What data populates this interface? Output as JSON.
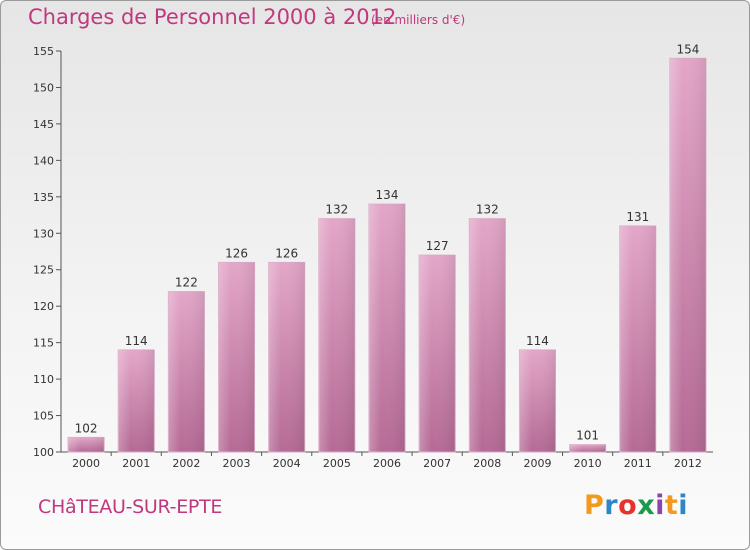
{
  "header": {
    "title": "Charges de Personnel 2000 à 2012",
    "subtitle": "(en milliers d'€)"
  },
  "footer": {
    "town": "CHâTEAU-SUR-EPTE",
    "brand": {
      "letters": [
        "P",
        "r",
        "o",
        "x",
        "i",
        "t",
        "i"
      ],
      "colors": [
        "#f39a1e",
        "#2e86c8",
        "#e6332a",
        "#1a9a4b",
        "#8e44ad",
        "#f39a1e",
        "#2e86c8"
      ]
    }
  },
  "chart_data": {
    "type": "bar",
    "title": "Charges de Personnel 2000 à 2012",
    "subtitle": "(en milliers d'€)",
    "categories": [
      "2000",
      "2001",
      "2002",
      "2003",
      "2004",
      "2005",
      "2006",
      "2007",
      "2008",
      "2009",
      "2010",
      "2011",
      "2012"
    ],
    "values": [
      102,
      114,
      122,
      126,
      126,
      132,
      134,
      127,
      132,
      114,
      101,
      131,
      154
    ],
    "ylim": [
      100,
      155
    ],
    "yticks": [
      100,
      105,
      110,
      115,
      120,
      125,
      130,
      135,
      140,
      145,
      150,
      155
    ],
    "grid": false,
    "bar_color": "#c96a9d"
  }
}
